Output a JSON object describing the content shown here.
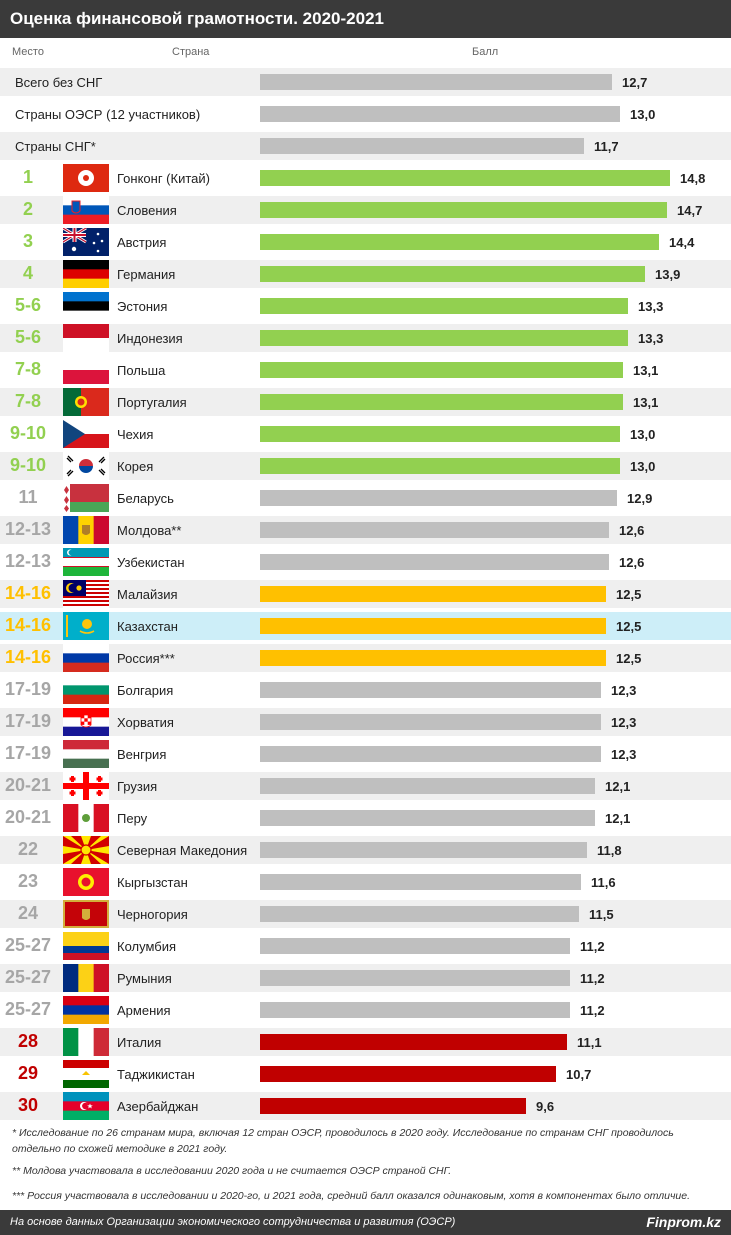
{
  "title": "Оценка финансовой грамотности. 2020-2021",
  "headers": {
    "rank": "Место",
    "country": "Страна",
    "score": "Балл"
  },
  "colors": {
    "green": "#92d050",
    "gray": "#bfbfbf",
    "yellow": "#ffc000",
    "red": "#c00000",
    "highlight": "#cdeef8"
  },
  "chart_data": {
    "type": "bar",
    "aggregates": [
      {
        "label": "Всего без СНГ",
        "value": "12,7",
        "score": 12.7
      },
      {
        "label": "Страны ОЭСР (12 участников)",
        "value": "13,0",
        "score": 13.0
      },
      {
        "label": "Страны СНГ*",
        "value": "11,7",
        "score": 11.7
      }
    ],
    "rows": [
      {
        "rank": "1",
        "country": "Гонконг (Китай)",
        "value": "14,8",
        "score": 14.8,
        "group": "green",
        "flag": "hongkong"
      },
      {
        "rank": "2",
        "country": "Словения",
        "value": "14,7",
        "score": 14.7,
        "group": "green",
        "flag": "slovenia"
      },
      {
        "rank": "3",
        "country": "Австрия",
        "value": "14,4",
        "score": 14.4,
        "group": "green",
        "flag": "australia"
      },
      {
        "rank": "4",
        "country": "Германия",
        "value": "13,9",
        "score": 13.9,
        "group": "green",
        "flag": "germany"
      },
      {
        "rank": "5-6",
        "country": "Эстония",
        "value": "13,3",
        "score": 13.3,
        "group": "green",
        "flag": "estonia"
      },
      {
        "rank": "5-6",
        "country": "Индонезия",
        "value": "13,3",
        "score": 13.3,
        "group": "green",
        "flag": "indonesia"
      },
      {
        "rank": "7-8",
        "country": "Польша",
        "value": "13,1",
        "score": 13.1,
        "group": "green",
        "flag": "poland"
      },
      {
        "rank": "7-8",
        "country": "Португалия",
        "value": "13,1",
        "score": 13.1,
        "group": "green",
        "flag": "portugal"
      },
      {
        "rank": "9-10",
        "country": "Чехия",
        "value": "13,0",
        "score": 13.0,
        "group": "green",
        "flag": "czech"
      },
      {
        "rank": "9-10",
        "country": "Корея",
        "value": "13,0",
        "score": 13.0,
        "group": "green",
        "flag": "korea"
      },
      {
        "rank": "11",
        "country": "Беларусь",
        "value": "12,9",
        "score": 12.9,
        "group": "gray",
        "flag": "belarus"
      },
      {
        "rank": "12-13",
        "country": "Молдова**",
        "value": "12,6",
        "score": 12.6,
        "group": "gray",
        "flag": "moldova"
      },
      {
        "rank": "12-13",
        "country": "Узбекистан",
        "value": "12,6",
        "score": 12.6,
        "group": "gray",
        "flag": "uzbekistan"
      },
      {
        "rank": "14-16",
        "country": "Малайзия",
        "value": "12,5",
        "score": 12.5,
        "group": "yellow",
        "flag": "malaysia"
      },
      {
        "rank": "14-16",
        "country": "Казахстан",
        "value": "12,5",
        "score": 12.5,
        "group": "yellow",
        "flag": "kazakhstan",
        "highlight": true
      },
      {
        "rank": "14-16",
        "country": "Россия***",
        "value": "12,5",
        "score": 12.5,
        "group": "yellow",
        "flag": "russia"
      },
      {
        "rank": "17-19",
        "country": "Болгария",
        "value": "12,3",
        "score": 12.3,
        "group": "gray",
        "flag": "bulgaria"
      },
      {
        "rank": "17-19",
        "country": "Хорватия",
        "value": "12,3",
        "score": 12.3,
        "group": "gray",
        "flag": "croatia"
      },
      {
        "rank": "17-19",
        "country": "Венгрия",
        "value": "12,3",
        "score": 12.3,
        "group": "gray",
        "flag": "hungary"
      },
      {
        "rank": "20-21",
        "country": "Грузия",
        "value": "12,1",
        "score": 12.1,
        "group": "gray",
        "flag": "georgia"
      },
      {
        "rank": "20-21",
        "country": "Перу",
        "value": "12,1",
        "score": 12.1,
        "group": "gray",
        "flag": "peru"
      },
      {
        "rank": "22",
        "country": "Северная Македония",
        "value": "11,8",
        "score": 11.8,
        "group": "gray",
        "flag": "macedonia"
      },
      {
        "rank": "23",
        "country": "Кыргызстан",
        "value": "11,6",
        "score": 11.6,
        "group": "gray",
        "flag": "kyrgyzstan"
      },
      {
        "rank": "24",
        "country": "Черногория",
        "value": "11,5",
        "score": 11.5,
        "group": "gray",
        "flag": "montenegro"
      },
      {
        "rank": "25-27",
        "country": "Колумбия",
        "value": "11,2",
        "score": 11.2,
        "group": "gray",
        "flag": "colombia"
      },
      {
        "rank": "25-27",
        "country": "Румыния",
        "value": "11,2",
        "score": 11.2,
        "group": "gray",
        "flag": "romania"
      },
      {
        "rank": "25-27",
        "country": "Армения",
        "value": "11,2",
        "score": 11.2,
        "group": "gray",
        "flag": "armenia"
      },
      {
        "rank": "28",
        "country": "Италия",
        "value": "11,1",
        "score": 11.1,
        "group": "red",
        "flag": "italy"
      },
      {
        "rank": "29",
        "country": "Таджикистан",
        "value": "10,7",
        "score": 10.7,
        "group": "red",
        "flag": "tajikistan"
      },
      {
        "rank": "30",
        "country": "Азербайджан",
        "value": "9,6",
        "score": 9.6,
        "group": "red",
        "flag": "azerbaijan"
      }
    ]
  },
  "notes": [
    "* Исследование по 26 странам мира, включая 12 стран ОЭСР, проводилось в 2020 году. Исследование по странам СНГ проводилось отдельно по схожей методике в 2021 году.",
    "** Молдова участвовала в исследовании 2020 года и не считается ОЭСР страной СНГ.",
    "*** Россия участвовала в исследовании и 2020-го, и 2021 года, средний балл оказался одинаковым, хотя в компонентах было отличие."
  ],
  "footer": {
    "source": "На основе данных Организации экономического сотрудничества и развития (ОЭСР)",
    "brand": "Finprom.kz"
  }
}
